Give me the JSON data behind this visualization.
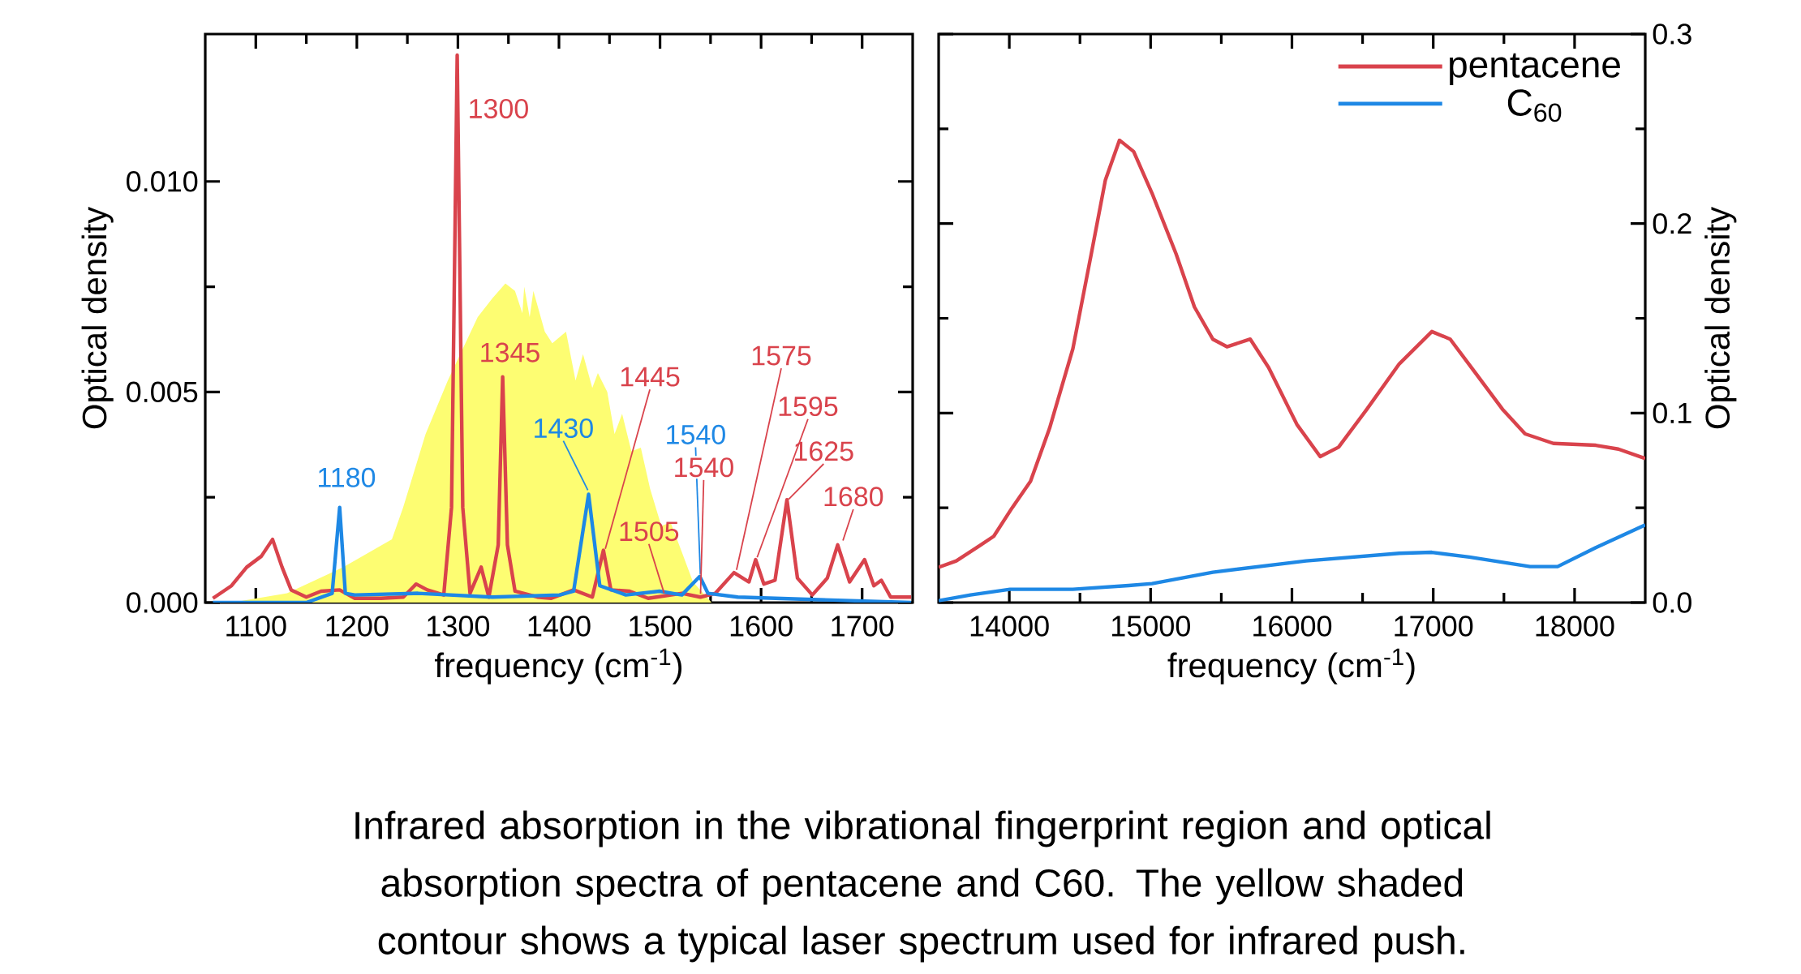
{
  "chart_data": [
    {
      "type": "line",
      "xlabel": "frequency (cm$^{-1}$)",
      "ylabel": "Optical density",
      "xlim": [
        1050,
        1750
      ],
      "ylim": [
        0,
        0.0135
      ],
      "xticks": [
        1100,
        1200,
        1300,
        1400,
        1500,
        1600,
        1700
      ],
      "yticks": [
        {
          "value": 0,
          "label": "0.000"
        },
        {
          "value": 0.005,
          "label": "0.005"
        },
        {
          "value": 0.01,
          "label": "0.010"
        }
      ],
      "series": [
        {
          "type": "area",
          "color": "#fdfd72",
          "x": [
            1076,
            1131,
            1186.7,
            1234.7,
            1245.8,
            1268,
            1290,
            1319.6,
            1334,
            1347,
            1356.5,
            1363.8,
            1365.6,
            1371,
            1374.7,
            1386,
            1393.4,
            1407,
            1416.4,
            1423.8,
            1433,
            1438.5,
            1447.8,
            1455,
            1462.5,
            1471.7,
            1481,
            1490.2,
            1501.3,
            1510.5,
            1521.6,
            1532.6,
            1551
          ],
          "values": [
            0,
            0.00022,
            0.00084,
            0.0015,
            0.00226,
            0.004,
            0.00527,
            0.00678,
            0.00722,
            0.00758,
            0.0074,
            0.00687,
            0.0075,
            0.00678,
            0.0074,
            0.00643,
            0.00616,
            0.00643,
            0.00527,
            0.0059,
            0.0051,
            0.00545,
            0.005,
            0.004,
            0.00448,
            0.00359,
            0.00368,
            0.0027,
            0.00182,
            0.0019,
            0.0012,
            0.00049,
            0
          ]
        },
        {
          "color": "#d9434c",
          "x": [
            1057.6,
            1076,
            1091,
            1105.5,
            1116.6,
            1126,
            1135,
            1150,
            1164.6,
            1183,
            1198,
            1224,
            1246,
            1258.7,
            1269.7,
            1286,
            1293.7,
            1299.3,
            1304.8,
            1312,
            1323,
            1330.6,
            1339.9,
            1344.3,
            1349,
            1356.5,
            1378.6,
            1392.4,
            1414.5,
            1433,
            1444,
            1451.4,
            1469.9,
            1488.3,
            1521.6,
            1540,
            1554.8,
            1573.2,
            1588,
            1594.6,
            1602.7,
            1613.8,
            1625.6,
            1636,
            1650.7,
            1665.5,
            1675.8,
            1687.6,
            1702.4,
            1711.6,
            1719,
            1728.2,
            1748.5
          ],
          "values": [
            0.0001,
            0.0004,
            0.00084,
            0.0011,
            0.0015,
            0.00084,
            0.0003,
            0.00013,
            0.00027,
            0.0003,
            0.0001,
            0.0001,
            0.00013,
            0.00044,
            0.0003,
            0.00018,
            0.00226,
            0.013,
            0.00226,
            0.00022,
            0.00084,
            0.00013,
            0.00137,
            0.00536,
            0.00137,
            0.00027,
            0.00013,
            0.0001,
            0.0003,
            0.00013,
            0.00124,
            0.0003,
            0.00027,
            0.0001,
            0.00022,
            0.00013,
            0.00022,
            0.00071,
            0.00049,
            0.00102,
            0.00044,
            0.00053,
            0.00244,
            0.00058,
            0.00018,
            0.00058,
            0.00137,
            0.00049,
            0.00102,
            0.0004,
            0.00053,
            0.00013,
            0.00013
          ]
        },
        {
          "color": "#1e88e5",
          "x": [
            1057.6,
            1150,
            1175.6,
            1183,
            1188.6,
            1198,
            1260.5,
            1334,
            1400.7,
            1414.5,
            1429.3,
            1440.4,
            1466.2,
            1499.4,
            1521.6,
            1539.3,
            1547.4,
            1577,
            1748.5
          ],
          "values": [
            0,
            0,
            0.00022,
            0.00226,
            0.00022,
            0.00018,
            0.00022,
            0.00013,
            0.00018,
            0.00027,
            0.00257,
            0.0004,
            0.00018,
            0.00027,
            0.00018,
            0.00062,
            0.00022,
            0.00013,
            0
          ]
        }
      ],
      "annotations": [
        {
          "text": "1180",
          "x": 1180,
          "y": 0.0022
        },
        {
          "text": "1300",
          "x": 1300,
          "y": 0.013
        },
        {
          "text": "1345",
          "x": 1345,
          "y": 0.0054
        },
        {
          "text": "1430",
          "x": 1430,
          "y": 0.0026
        },
        {
          "text": "1445",
          "x": 1445,
          "y": 0.0012
        },
        {
          "text": "1505",
          "x": 1505,
          "y": 0.00015
        },
        {
          "text": "1540",
          "x": 1540,
          "y": 0.0006
        },
        {
          "text": "1540",
          "x": 1540,
          "y": 0.00013
        },
        {
          "text": "1575",
          "x": 1575,
          "y": 0.0007
        },
        {
          "text": "1595",
          "x": 1595,
          "y": 0.001
        },
        {
          "text": "1625",
          "x": 1625,
          "y": 0.0024
        },
        {
          "text": "1680",
          "x": 1680,
          "y": 0.0014
        },
        "Infrared absorption in the vibrational fingerprint region and optical absorption spectra of pentacene and C60. The yellow shaded contour shows a typical laser spectrum used for infrared push."
      ]
    },
    {
      "type": "line",
      "xlabel": "frequency (cm$^{-1}$)",
      "y2label": "Optical density",
      "legend": "top right",
      "xlim": [
        13500,
        18500
      ],
      "y2lim": [
        0,
        0.3
      ],
      "xticks": [
        14000,
        15000,
        16000,
        17000,
        18000
      ],
      "y2ticks": [
        {
          "value": 0,
          "label": "0.0"
        },
        {
          "value": 0.1,
          "label": "0.1"
        },
        {
          "value": 0.2,
          "label": "0.2"
        },
        {
          "value": 0.3,
          "label": "0.3"
        }
      ],
      "series": [
        {
          "name": "pentacene",
          "axis": "y2",
          "color": "#d9434c",
          "x": [
            13500,
            13625,
            13790,
            13890,
            14020,
            14150,
            14285,
            14450,
            14580,
            14680,
            14780,
            14880,
            15010,
            15180,
            15310,
            15440,
            15540,
            15705,
            15835,
            16035,
            16200,
            16330,
            16530,
            16760,
            16990,
            17120,
            17290,
            17490,
            17650,
            17850,
            18150,
            18310,
            18500
          ],
          "values": [
            0.0186,
            0.022,
            0.03,
            0.035,
            0.05,
            0.064,
            0.092,
            0.134,
            0.184,
            0.223,
            0.244,
            0.238,
            0.216,
            0.184,
            0.156,
            0.139,
            0.135,
            0.139,
            0.124,
            0.094,
            0.077,
            0.082,
            0.102,
            0.126,
            0.143,
            0.139,
            0.122,
            0.102,
            0.089,
            0.084,
            0.083,
            0.081,
            0.076
          ]
        },
        {
          "name": "C$_{60}$",
          "axis": "y2",
          "color": "#1e88e5",
          "x": [
            13500,
            13725,
            14005,
            14450,
            14845,
            15010,
            15440,
            16100,
            16760,
            16990,
            17255,
            17685,
            17880,
            18150,
            18500
          ],
          "values": [
            0.001,
            0.004,
            0.007,
            0.007,
            0.009,
            0.01,
            0.016,
            0.022,
            0.026,
            0.0265,
            0.024,
            0.019,
            0.019,
            0.029,
            0.041
          ]
        }
      ]
    }
  ]
}
